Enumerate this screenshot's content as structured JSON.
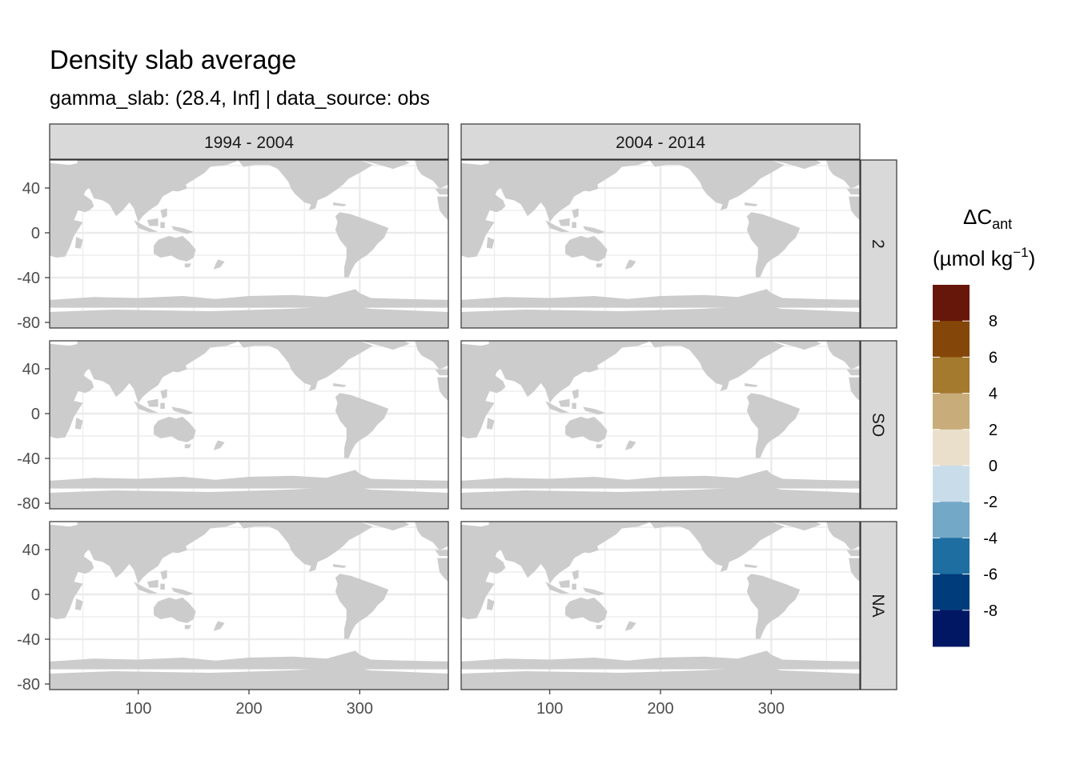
{
  "title": "Density slab average",
  "subtitle": "gamma_slab: (28.4, Inf] | data_source: obs",
  "columns": [
    "1994 - 2004",
    "2004 - 2014"
  ],
  "rows": [
    "2",
    "SO",
    "NA"
  ],
  "axes": {
    "x_ticks": [
      100,
      200,
      300
    ],
    "y_ticks": [
      40,
      0,
      -40,
      -80
    ],
    "x_range": [
      20,
      380
    ],
    "y_range": [
      -85,
      65
    ]
  },
  "legend": {
    "title_main": "ΔC",
    "title_sub": "ant",
    "unit_prefix": "(µmol kg",
    "unit_exp": "−1",
    "unit_suffix": ")",
    "tick_labels": [
      "8",
      "6",
      "4",
      "2",
      "0",
      "-2",
      "-4",
      "-6",
      "-8"
    ],
    "tick_values": [
      8,
      6,
      4,
      2,
      0,
      -2,
      -4,
      -6,
      -8
    ],
    "colors": [
      "#67170a",
      "#854709",
      "#a47a2e",
      "#c8ad7a",
      "#e9dfcb",
      "#c8dde9",
      "#74a8c7",
      "#1e6ea1",
      "#003c7b",
      "#021764"
    ]
  },
  "colors": {
    "land": "#cccccc",
    "grid": "#ebebeb",
    "strip": "#d9d9d9",
    "border": "#333333"
  }
}
